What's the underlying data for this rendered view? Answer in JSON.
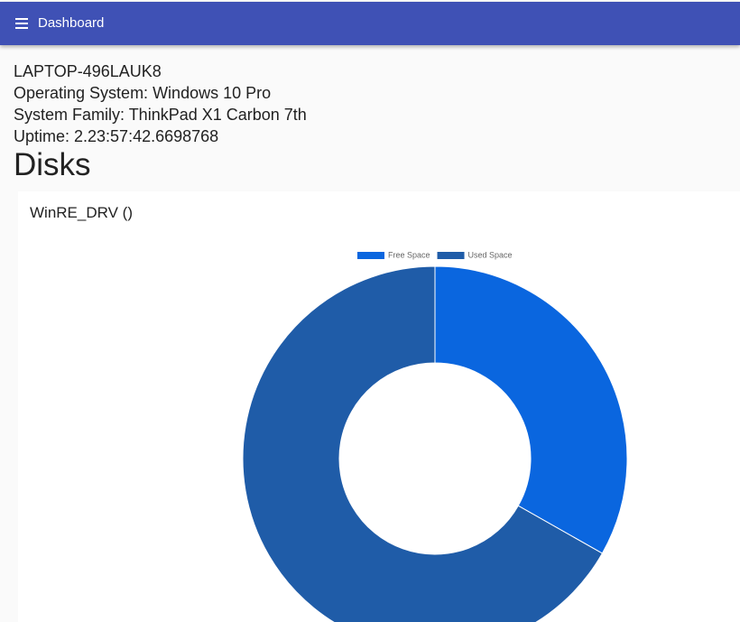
{
  "header": {
    "title": "Dashboard"
  },
  "system": {
    "hostname": "LAPTOP-496LAUK8",
    "os": "Operating System: Windows 10 Pro",
    "family": "System Family: ThinkPad X1 Carbon 7th",
    "uptime": "Uptime: 2.23:57:42.6698768"
  },
  "section_title": "Disks",
  "chart_data": {
    "type": "doughnut",
    "title": "WinRE_DRV ()",
    "categories": [
      "Free Space",
      "Used Space"
    ],
    "values": [
      33.2,
      66.8
    ],
    "colors": [
      "#0a66df",
      "#1f5ca8"
    ],
    "legend": "top"
  }
}
